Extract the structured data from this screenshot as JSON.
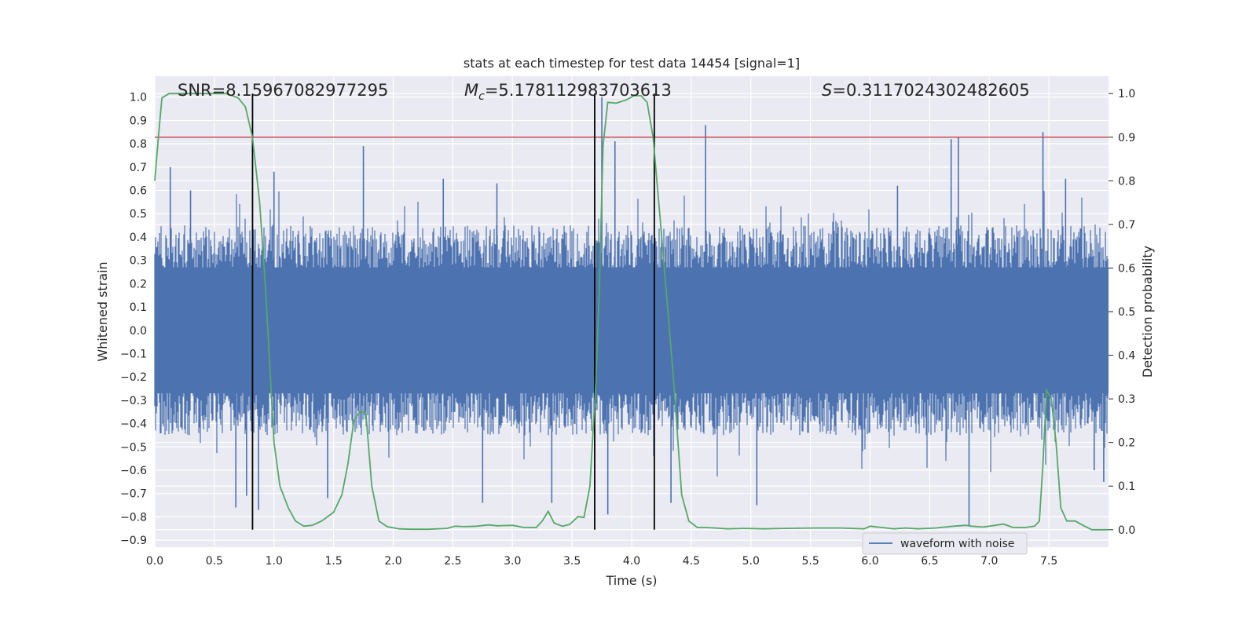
{
  "chart_data": {
    "type": "line",
    "title": "stats at each timestep for test data 14454 [signal=1]",
    "xlabel": "Time (s)",
    "ylabel": "Whitened strain",
    "y2label": "Detection probability",
    "xlim": [
      0.0,
      8.0
    ],
    "ylim": [
      -0.93,
      1.09
    ],
    "y2lim": [
      -0.04,
      1.04
    ],
    "x_ticks": [
      0.0,
      0.5,
      1.0,
      1.5,
      2.0,
      2.5,
      3.0,
      3.5,
      4.0,
      4.5,
      5.0,
      5.5,
      6.0,
      6.5,
      7.0,
      7.5
    ],
    "x_tick_labels": [
      "0.0",
      "0.5",
      "1.0",
      "1.5",
      "2.0",
      "2.5",
      "3.0",
      "3.5",
      "4.0",
      "4.5",
      "5.0",
      "5.5",
      "6.0",
      "6.5",
      "7.0",
      "7.5"
    ],
    "y_ticks": [
      -0.9,
      -0.8,
      -0.7,
      -0.6,
      -0.5,
      -0.4,
      -0.3,
      -0.2,
      -0.1,
      0.0,
      0.1,
      0.2,
      0.3,
      0.4,
      0.5,
      0.6,
      0.7,
      0.8,
      0.9,
      1.0
    ],
    "y_tick_labels": [
      "−0.9",
      "−0.8",
      "−0.7",
      "−0.6",
      "−0.5",
      "−0.4",
      "−0.3",
      "−0.2",
      "−0.1",
      "0.0",
      "0.1",
      "0.2",
      "0.3",
      "0.4",
      "0.5",
      "0.6",
      "0.7",
      "0.8",
      "0.9",
      "1.0"
    ],
    "y2_ticks": [
      0.0,
      0.1,
      0.2,
      0.3,
      0.4,
      0.5,
      0.6,
      0.7,
      0.8,
      0.9,
      1.0
    ],
    "y2_tick_labels": [
      "0.0",
      "0.1",
      "0.2",
      "0.3",
      "0.4",
      "0.5",
      "0.6",
      "0.7",
      "0.8",
      "0.9",
      "1.0"
    ],
    "grid": true,
    "legend": {
      "position": "bottom-right",
      "entries": [
        "waveform with noise"
      ]
    },
    "series": [
      {
        "name": "waveform with noise",
        "axis": "left",
        "color": "#4c72b0",
        "kind": "noisy strain, envelope roughly ±0.45 with spikes up to 1.0 and down to -0.84",
        "envelope": 0.45,
        "spikes": [
          {
            "x": 0.13,
            "y": 0.7
          },
          {
            "x": 0.3,
            "y": 0.6
          },
          {
            "x": 0.68,
            "y": -0.76
          },
          {
            "x": 0.77,
            "y": -0.71
          },
          {
            "x": 0.87,
            "y": -0.77
          },
          {
            "x": 1.0,
            "y": 0.68
          },
          {
            "x": 1.45,
            "y": -0.72
          },
          {
            "x": 1.75,
            "y": 0.79
          },
          {
            "x": 2.42,
            "y": 0.65
          },
          {
            "x": 2.75,
            "y": -0.74
          },
          {
            "x": 2.87,
            "y": 0.63
          },
          {
            "x": 3.33,
            "y": -0.74
          },
          {
            "x": 3.75,
            "y": 1.0
          },
          {
            "x": 3.8,
            "y": -0.79
          },
          {
            "x": 3.86,
            "y": 0.81
          },
          {
            "x": 4.33,
            "y": -0.74
          },
          {
            "x": 4.62,
            "y": 0.88
          },
          {
            "x": 5.05,
            "y": -0.75
          },
          {
            "x": 6.23,
            "y": 0.62
          },
          {
            "x": 6.68,
            "y": 0.82
          },
          {
            "x": 6.83,
            "y": -0.84
          },
          {
            "x": 6.74,
            "y": 0.83
          },
          {
            "x": 7.45,
            "y": 0.85
          },
          {
            "x": 7.64,
            "y": 0.65
          },
          {
            "x": 7.96,
            "y": -0.65
          },
          {
            "x": 7.88,
            "y": -0.6
          }
        ]
      },
      {
        "name": "",
        "axis": "right",
        "color": "#55a868",
        "x": [
          0.0,
          0.03,
          0.06,
          0.12,
          0.2,
          0.3,
          0.45,
          0.6,
          0.7,
          0.76,
          0.82,
          0.88,
          0.93,
          0.97,
          1.0,
          1.05,
          1.12,
          1.18,
          1.25,
          1.32,
          1.4,
          1.5,
          1.57,
          1.62,
          1.67,
          1.72,
          1.77,
          1.82,
          1.88,
          1.95,
          2.05,
          2.15,
          2.3,
          2.45,
          2.52,
          2.6,
          2.7,
          2.8,
          2.88,
          3.0,
          3.1,
          3.2,
          3.25,
          3.3,
          3.35,
          3.42,
          3.48,
          3.55,
          3.6,
          3.65,
          3.7,
          3.73,
          3.76,
          3.8,
          3.87,
          3.95,
          4.02,
          4.08,
          4.13,
          4.18,
          4.25,
          4.35,
          4.42,
          4.48,
          4.55,
          4.62,
          4.7,
          4.8,
          4.95,
          5.1,
          5.3,
          5.55,
          5.75,
          5.95,
          6.0,
          6.1,
          6.2,
          6.3,
          6.4,
          6.55,
          6.7,
          6.8,
          6.85,
          6.95,
          7.05,
          7.12,
          7.2,
          7.3,
          7.38,
          7.42,
          7.45,
          7.48,
          7.52,
          7.56,
          7.6,
          7.65,
          7.72,
          7.8,
          7.86,
          7.92,
          8.0
        ],
        "y": [
          0.8,
          0.9,
          0.99,
          1.0,
          1.0,
          1.0,
          1.0,
          1.0,
          0.99,
          0.97,
          0.9,
          0.75,
          0.55,
          0.35,
          0.2,
          0.1,
          0.05,
          0.02,
          0.008,
          0.01,
          0.02,
          0.04,
          0.08,
          0.15,
          0.25,
          0.27,
          0.27,
          0.1,
          0.02,
          0.007,
          0.002,
          0.001,
          0.001,
          0.003,
          0.008,
          0.007,
          0.008,
          0.011,
          0.009,
          0.01,
          0.005,
          0.005,
          0.02,
          0.042,
          0.015,
          0.008,
          0.012,
          0.03,
          0.028,
          0.1,
          0.34,
          0.56,
          0.88,
          0.98,
          0.978,
          0.985,
          0.995,
          0.995,
          0.98,
          0.9,
          0.68,
          0.35,
          0.08,
          0.02,
          0.005,
          0.005,
          0.004,
          0.002,
          0.003,
          0.002,
          0.003,
          0.004,
          0.004,
          0.002,
          0.008,
          0.005,
          0.002,
          0.004,
          0.002,
          0.004,
          0.008,
          0.01,
          0.008,
          0.006,
          0.01,
          0.013,
          0.005,
          0.005,
          0.008,
          0.02,
          0.15,
          0.32,
          0.3,
          0.2,
          0.05,
          0.02,
          0.02,
          0.008,
          0.0,
          0.0,
          0.0
        ]
      }
    ],
    "threshold": {
      "axis": "right",
      "value": 0.9,
      "color": "#c44e52"
    },
    "vlines": [
      0.82,
      3.69,
      4.19
    ],
    "vline_range_right_axis": [
      0.0,
      1.0
    ],
    "annotations": [
      {
        "prefix": "SNR",
        "value": "=8.15967082977295"
      },
      {
        "prefix": "M",
        "sub": "c",
        "value": "=5.178112983703613"
      },
      {
        "prefix": "S",
        "value": "=0.3117024302482605"
      }
    ]
  }
}
